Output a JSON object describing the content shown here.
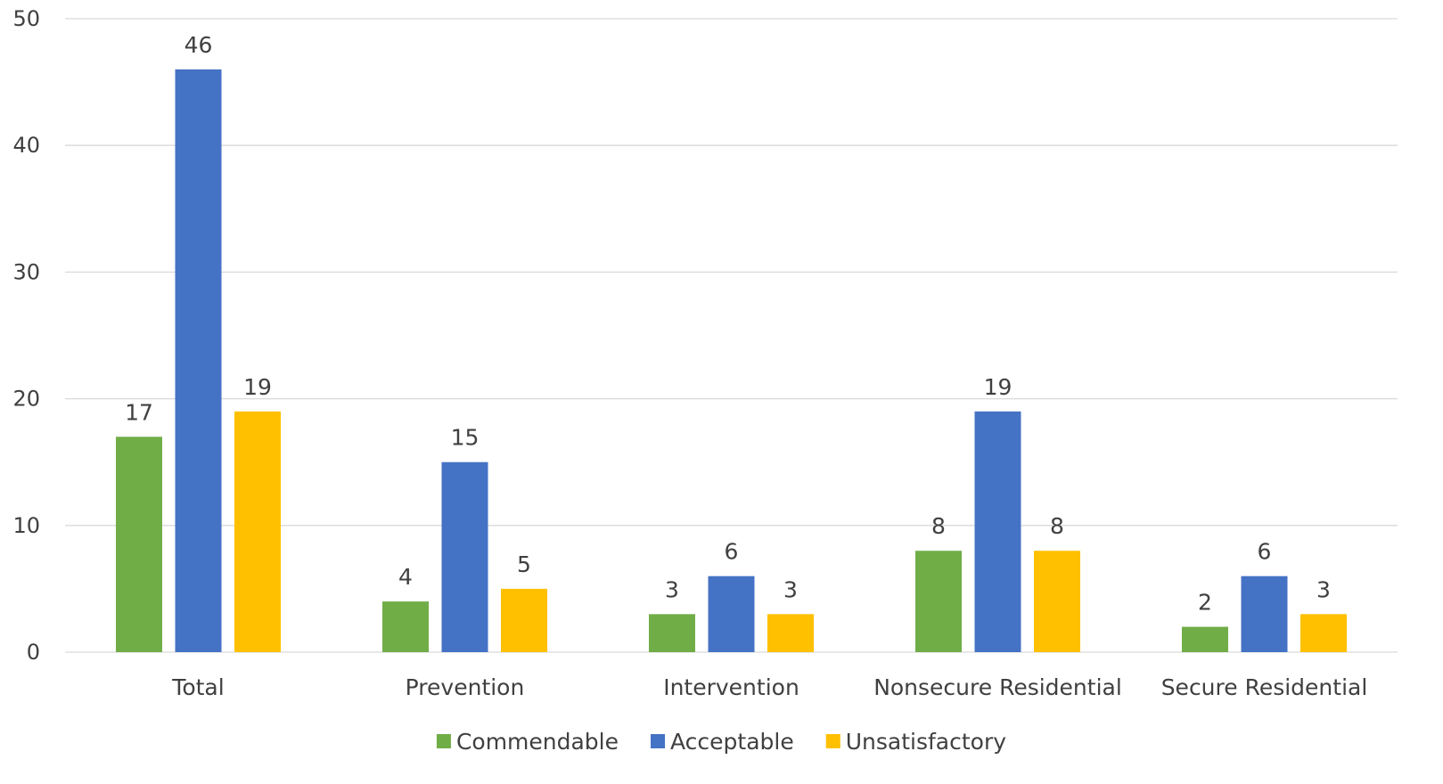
{
  "chart_data": {
    "type": "bar",
    "categories": [
      "Total",
      "Prevention",
      "Intervention",
      "Nonsecure Residential",
      "Secure Residential"
    ],
    "series": [
      {
        "name": "Commendable",
        "values": [
          17,
          4,
          3,
          8,
          2
        ],
        "color": "#70ad47"
      },
      {
        "name": "Acceptable",
        "values": [
          46,
          15,
          6,
          19,
          6
        ],
        "color": "#4472c4"
      },
      {
        "name": "Unsatisfactory",
        "values": [
          19,
          5,
          3,
          8,
          3
        ],
        "color": "#ffc000"
      }
    ],
    "title": "",
    "xlabel": "",
    "ylabel": "",
    "ylim": [
      0,
      50
    ],
    "yticks": [
      0,
      10,
      20,
      30,
      40,
      50
    ],
    "grid": true,
    "legend_position": "bottom",
    "data_labels": true
  }
}
